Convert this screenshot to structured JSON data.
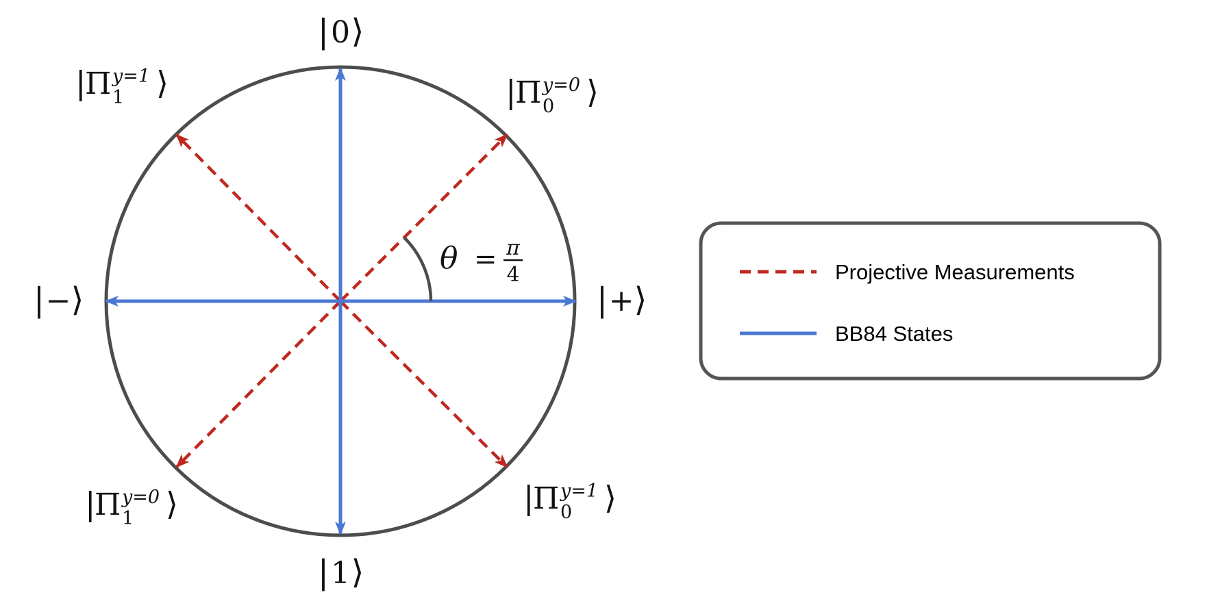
{
  "colors": {
    "circle": "#4d4d4d",
    "bb84": "#4a78d4",
    "projective": "#c0281f",
    "angle_arc": "#4d4d4d",
    "legend_border": "#555555"
  },
  "state_labels": {
    "zero": {
      "symbol": "0"
    },
    "one": {
      "symbol": "1"
    },
    "plus": {
      "symbol": "+"
    },
    "minus": {
      "symbol": "−"
    }
  },
  "measurement_labels": {
    "pi0_y0": {
      "base": "Π",
      "sub": "0",
      "sup": "y=0"
    },
    "pi1_y1": {
      "base": "Π",
      "sub": "1",
      "sup": "y=1"
    },
    "pi1_y0": {
      "base": "Π",
      "sub": "1",
      "sup": "y=0"
    },
    "pi0_y1": {
      "base": "Π",
      "sub": "0",
      "sup": "y=1"
    }
  },
  "angle": {
    "lhs": "θ",
    "eq": "=",
    "num": "π",
    "den": "4"
  },
  "legend": {
    "items": [
      {
        "label": "Projective Measurements",
        "style": "dashed",
        "icon": "red-dashed-line-icon"
      },
      {
        "label": "BB84 States",
        "style": "solid",
        "icon": "blue-solid-line-icon"
      }
    ]
  }
}
